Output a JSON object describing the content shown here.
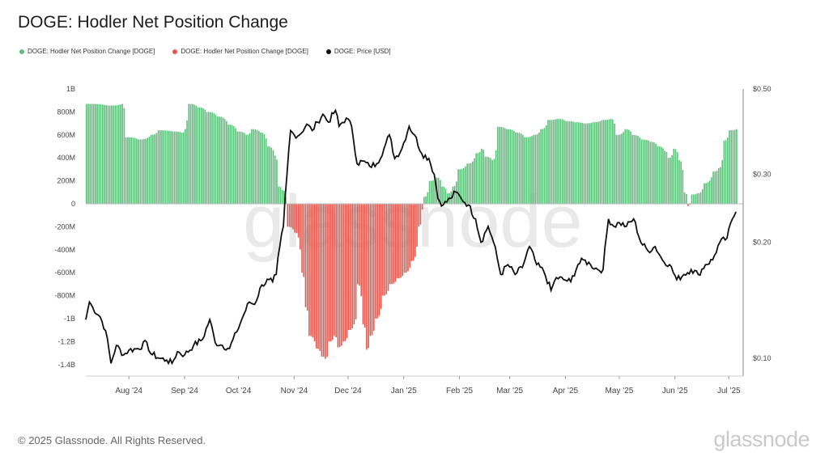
{
  "title": "DOGE: Hodler Net Position Change",
  "legend": [
    {
      "label": "DOGE: Hodler Net Position Change [DOGE]",
      "color": "#5cc07a"
    },
    {
      "label": "DOGE: Hodler Net Position Change [DOGE]",
      "color": "#e15a4f"
    },
    {
      "label": "DOGE: Price [USD]",
      "color": "#111111"
    }
  ],
  "watermark": "glassnode",
  "footer": "© 2025 Glassnode. All Rights Reserved.",
  "brand": "glassnode",
  "colors": {
    "positive": "#5cc07a",
    "negative": "#e15a4f",
    "price": "#111111",
    "axis": "#888888"
  },
  "chart_data": {
    "type": "bar",
    "left_axis": {
      "ticks": [
        {
          "value": 1000,
          "label": "1B"
        },
        {
          "value": 800,
          "label": "800M"
        },
        {
          "value": 600,
          "label": "600M"
        },
        {
          "value": 400,
          "label": "400M"
        },
        {
          "value": 200,
          "label": "200M"
        },
        {
          "value": 0,
          "label": "0"
        },
        {
          "value": -200,
          "label": "-200M"
        },
        {
          "value": -400,
          "label": "-400M"
        },
        {
          "value": -600,
          "label": "-600M"
        },
        {
          "value": -800,
          "label": "-800M"
        },
        {
          "value": -1000,
          "label": "-1B"
        },
        {
          "value": -1200,
          "label": "-1.2B"
        },
        {
          "value": -1400,
          "label": "-1.4B"
        }
      ],
      "range": [
        -1450,
        1000
      ],
      "unit": "M DOGE"
    },
    "right_axis": {
      "ticks": [
        {
          "value": 0.5,
          "label": "$0.50"
        },
        {
          "value": 0.3,
          "label": "$0.30"
        },
        {
          "value": 0.2,
          "label": "$0.20"
        },
        {
          "value": 0.1,
          "label": "$0.10"
        }
      ],
      "scale": "log",
      "range": [
        0.09,
        0.5
      ]
    },
    "x_axis": {
      "range": [
        "2024-07-22",
        "2025-07-23"
      ],
      "ticks": [
        {
          "date": "2024-08-15",
          "label": "Aug '24"
        },
        {
          "date": "2024-09-15",
          "label": "Sep '24"
        },
        {
          "date": "2024-10-15",
          "label": "Oct '24"
        },
        {
          "date": "2024-11-15",
          "label": "Nov '24"
        },
        {
          "date": "2024-12-15",
          "label": "Dec '24"
        },
        {
          "date": "2025-01-15",
          "label": "Jan '25"
        },
        {
          "date": "2025-02-15",
          "label": "Feb '25"
        },
        {
          "date": "2025-03-15",
          "label": "Mar '25"
        },
        {
          "date": "2025-04-15",
          "label": "Apr '25"
        },
        {
          "date": "2025-05-15",
          "label": "May '25"
        },
        {
          "date": "2025-06-15",
          "label": "Jun '25"
        },
        {
          "date": "2025-07-15",
          "label": "Jul '25"
        }
      ]
    },
    "net_position_change": [
      [
        "2024-07-22",
        870
      ],
      [
        "2024-08-03",
        855
      ],
      [
        "2024-08-11",
        870
      ],
      [
        "2024-08-13",
        580
      ],
      [
        "2024-08-20",
        560
      ],
      [
        "2024-08-27",
        600
      ],
      [
        "2024-08-31",
        640
      ],
      [
        "2024-09-08",
        630
      ],
      [
        "2024-09-13",
        620
      ],
      [
        "2024-09-17",
        870
      ],
      [
        "2024-09-22",
        840
      ],
      [
        "2024-09-27",
        800
      ],
      [
        "2024-10-03",
        760
      ],
      [
        "2024-10-09",
        690
      ],
      [
        "2024-10-14",
        630
      ],
      [
        "2024-10-19",
        600
      ],
      [
        "2024-10-22",
        650
      ],
      [
        "2024-10-27",
        620
      ],
      [
        "2024-10-31",
        500
      ],
      [
        "2024-11-04",
        420
      ],
      [
        "2024-11-06",
        150
      ],
      [
        "2024-11-08",
        120
      ],
      [
        "2024-11-10",
        60
      ],
      [
        "2024-11-11",
        -200
      ],
      [
        "2024-11-15",
        -250
      ],
      [
        "2024-11-19",
        -600
      ],
      [
        "2024-11-21",
        -900
      ],
      [
        "2024-11-23",
        -1150
      ],
      [
        "2024-11-27",
        -1260
      ],
      [
        "2024-11-30",
        -1330
      ],
      [
        "2024-12-02",
        -1350
      ],
      [
        "2024-12-04",
        -1200
      ],
      [
        "2024-12-07",
        -1150
      ],
      [
        "2024-12-09",
        -1250
      ],
      [
        "2024-12-12",
        -1200
      ],
      [
        "2024-12-15",
        -1100
      ],
      [
        "2024-12-18",
        -1050
      ],
      [
        "2024-12-20",
        -700
      ],
      [
        "2024-12-23",
        -1050
      ],
      [
        "2024-12-25",
        -1270
      ],
      [
        "2024-12-27",
        -1150
      ],
      [
        "2024-12-30",
        -1000
      ],
      [
        "2025-01-03",
        -800
      ],
      [
        "2025-01-07",
        -700
      ],
      [
        "2025-01-11",
        -650
      ],
      [
        "2025-01-15",
        -600
      ],
      [
        "2025-01-19",
        -500
      ],
      [
        "2025-01-23",
        -200
      ],
      [
        "2025-01-25",
        -50
      ],
      [
        "2025-01-26",
        60
      ],
      [
        "2025-01-29",
        200
      ],
      [
        "2025-02-02",
        230
      ],
      [
        "2025-02-05",
        150
      ],
      [
        "2025-02-08",
        90
      ],
      [
        "2025-02-11",
        150
      ],
      [
        "2025-02-14",
        300
      ],
      [
        "2025-02-19",
        350
      ],
      [
        "2025-02-24",
        440
      ],
      [
        "2025-02-27",
        480
      ],
      [
        "2025-03-01",
        410
      ],
      [
        "2025-03-05",
        380
      ],
      [
        "2025-03-08",
        670
      ],
      [
        "2025-03-13",
        650
      ],
      [
        "2025-03-18",
        620
      ],
      [
        "2025-03-23",
        580
      ],
      [
        "2025-03-28",
        600
      ],
      [
        "2025-04-01",
        650
      ],
      [
        "2025-04-05",
        730
      ],
      [
        "2025-04-10",
        740
      ],
      [
        "2025-04-15",
        720
      ],
      [
        "2025-04-20",
        710
      ],
      [
        "2025-04-25",
        700
      ],
      [
        "2025-04-30",
        710
      ],
      [
        "2025-05-05",
        730
      ],
      [
        "2025-05-10",
        740
      ],
      [
        "2025-05-13",
        600
      ],
      [
        "2025-05-18",
        650
      ],
      [
        "2025-05-22",
        600
      ],
      [
        "2025-05-27",
        560
      ],
      [
        "2025-06-01",
        540
      ],
      [
        "2025-06-05",
        500
      ],
      [
        "2025-06-09",
        460
      ],
      [
        "2025-06-11",
        400
      ],
      [
        "2025-06-14",
        480
      ],
      [
        "2025-06-17",
        380
      ],
      [
        "2025-06-20",
        100
      ],
      [
        "2025-06-22",
        -20
      ],
      [
        "2025-06-24",
        80
      ],
      [
        "2025-06-27",
        90
      ],
      [
        "2025-07-01",
        180
      ],
      [
        "2025-07-06",
        280
      ],
      [
        "2025-07-09",
        310
      ],
      [
        "2025-07-12",
        550
      ],
      [
        "2025-07-15",
        640
      ],
      [
        "2025-07-19",
        650
      ]
    ],
    "price_usd": [
      [
        "2024-07-22",
        0.126
      ],
      [
        "2024-07-24",
        0.14
      ],
      [
        "2024-07-26",
        0.135
      ],
      [
        "2024-07-30",
        0.128
      ],
      [
        "2024-08-02",
        0.118
      ],
      [
        "2024-08-05",
        0.097
      ],
      [
        "2024-08-08",
        0.108
      ],
      [
        "2024-08-12",
        0.102
      ],
      [
        "2024-08-15",
        0.105
      ],
      [
        "2024-08-20",
        0.106
      ],
      [
        "2024-08-25",
        0.11
      ],
      [
        "2024-08-27",
        0.103
      ],
      [
        "2024-09-01",
        0.1
      ],
      [
        "2024-09-05",
        0.099
      ],
      [
        "2024-09-08",
        0.097
      ],
      [
        "2024-09-11",
        0.104
      ],
      [
        "2024-09-15",
        0.102
      ],
      [
        "2024-09-20",
        0.108
      ],
      [
        "2024-09-25",
        0.112
      ],
      [
        "2024-09-29",
        0.126
      ],
      [
        "2024-10-02",
        0.11
      ],
      [
        "2024-10-06",
        0.108
      ],
      [
        "2024-10-10",
        0.106
      ],
      [
        "2024-10-14",
        0.117
      ],
      [
        "2024-10-18",
        0.13
      ],
      [
        "2024-10-21",
        0.14
      ],
      [
        "2024-10-24",
        0.138
      ],
      [
        "2024-10-28",
        0.155
      ],
      [
        "2024-11-01",
        0.16
      ],
      [
        "2024-11-03",
        0.158
      ],
      [
        "2024-11-05",
        0.165
      ],
      [
        "2024-11-07",
        0.195
      ],
      [
        "2024-11-09",
        0.22
      ],
      [
        "2024-11-11",
        0.3
      ],
      [
        "2024-11-13",
        0.39
      ],
      [
        "2024-11-15",
        0.38
      ],
      [
        "2024-11-18",
        0.38
      ],
      [
        "2024-11-22",
        0.405
      ],
      [
        "2024-11-25",
        0.39
      ],
      [
        "2024-11-28",
        0.41
      ],
      [
        "2024-12-01",
        0.43
      ],
      [
        "2024-12-04",
        0.41
      ],
      [
        "2024-12-08",
        0.44
      ],
      [
        "2024-12-10",
        0.4
      ],
      [
        "2024-12-14",
        0.42
      ],
      [
        "2024-12-17",
        0.4
      ],
      [
        "2024-12-20",
        0.32
      ],
      [
        "2024-12-23",
        0.325
      ],
      [
        "2024-12-27",
        0.315
      ],
      [
        "2024-12-31",
        0.32
      ],
      [
        "2025-01-04",
        0.35
      ],
      [
        "2025-01-07",
        0.38
      ],
      [
        "2025-01-10",
        0.33
      ],
      [
        "2025-01-14",
        0.35
      ],
      [
        "2025-01-18",
        0.4
      ],
      [
        "2025-01-21",
        0.38
      ],
      [
        "2025-01-25",
        0.34
      ],
      [
        "2025-01-29",
        0.33
      ],
      [
        "2025-02-01",
        0.3
      ],
      [
        "2025-02-03",
        0.26
      ],
      [
        "2025-02-06",
        0.25
      ],
      [
        "2025-02-10",
        0.26
      ],
      [
        "2025-02-13",
        0.27
      ],
      [
        "2025-02-16",
        0.26
      ],
      [
        "2025-02-20",
        0.25
      ],
      [
        "2025-02-24",
        0.23
      ],
      [
        "2025-02-27",
        0.2
      ],
      [
        "2025-03-03",
        0.22
      ],
      [
        "2025-03-06",
        0.2
      ],
      [
        "2025-03-10",
        0.165
      ],
      [
        "2025-03-14",
        0.175
      ],
      [
        "2025-03-18",
        0.165
      ],
      [
        "2025-03-22",
        0.172
      ],
      [
        "2025-03-26",
        0.195
      ],
      [
        "2025-03-30",
        0.175
      ],
      [
        "2025-04-03",
        0.168
      ],
      [
        "2025-04-07",
        0.15
      ],
      [
        "2025-04-10",
        0.162
      ],
      [
        "2025-04-14",
        0.16
      ],
      [
        "2025-04-18",
        0.158
      ],
      [
        "2025-04-22",
        0.175
      ],
      [
        "2025-04-25",
        0.18
      ],
      [
        "2025-04-29",
        0.175
      ],
      [
        "2025-05-03",
        0.17
      ],
      [
        "2025-05-06",
        0.17
      ],
      [
        "2025-05-09",
        0.23
      ],
      [
        "2025-05-12",
        0.22
      ],
      [
        "2025-05-15",
        0.225
      ],
      [
        "2025-05-19",
        0.22
      ],
      [
        "2025-05-23",
        0.23
      ],
      [
        "2025-05-27",
        0.2
      ],
      [
        "2025-05-31",
        0.19
      ],
      [
        "2025-06-04",
        0.195
      ],
      [
        "2025-06-08",
        0.18
      ],
      [
        "2025-06-12",
        0.175
      ],
      [
        "2025-06-16",
        0.16
      ],
      [
        "2025-06-20",
        0.165
      ],
      [
        "2025-06-24",
        0.17
      ],
      [
        "2025-06-28",
        0.165
      ],
      [
        "2025-07-02",
        0.175
      ],
      [
        "2025-07-06",
        0.18
      ],
      [
        "2025-07-10",
        0.2
      ],
      [
        "2025-07-14",
        0.205
      ],
      [
        "2025-07-17",
        0.23
      ],
      [
        "2025-07-19",
        0.24
      ]
    ]
  }
}
